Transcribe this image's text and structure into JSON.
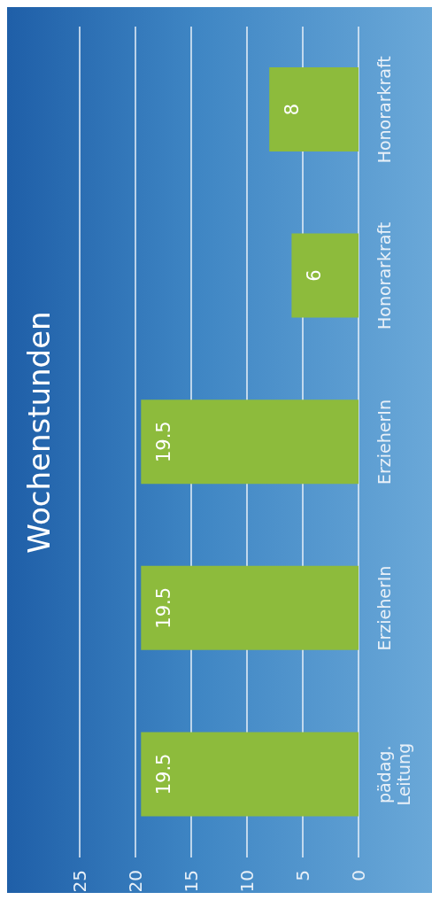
{
  "chart_data": {
    "type": "bar",
    "orientation": "horizontal",
    "title": "Wochenstunden",
    "categories": [
      "Honorarkraft",
      "Honorarkraft",
      "ErzieherIn",
      "ErzieherIn",
      "pädag. Leitung"
    ],
    "values": [
      8,
      6,
      19.5,
      19.5,
      19.5
    ],
    "color": "#8dbb3c",
    "xlim": [
      25,
      0
    ],
    "xticks": [
      0,
      5,
      10,
      15,
      20,
      25
    ],
    "grid": "x",
    "data_labels": true
  }
}
